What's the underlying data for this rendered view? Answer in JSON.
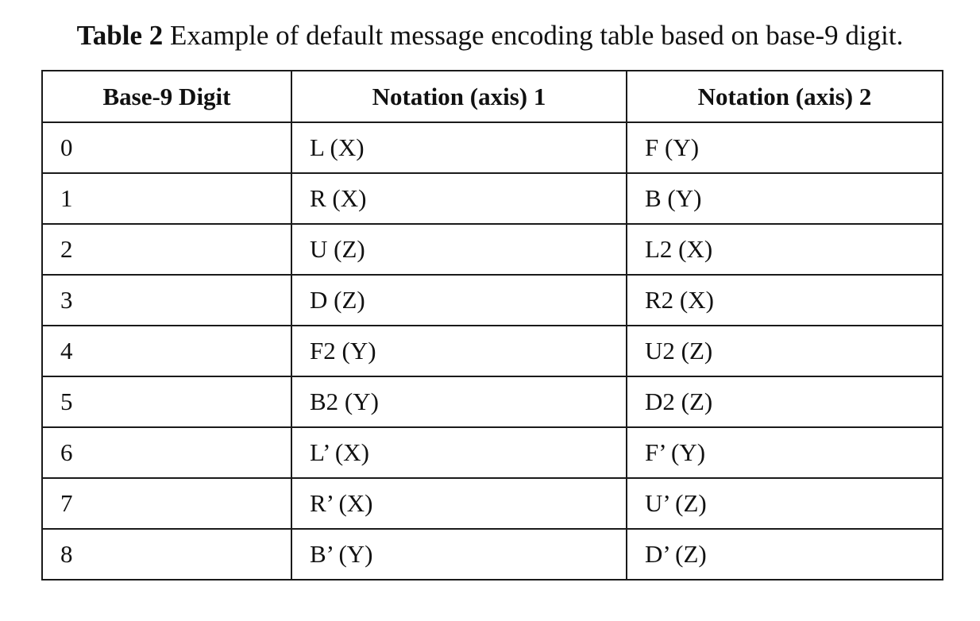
{
  "caption": {
    "label": "Table 2",
    "text": "Example of default message encoding table based on base-9 digit."
  },
  "table": {
    "headers": [
      "Base-9 Digit",
      "Notation (axis) 1",
      "Notation (axis) 2"
    ],
    "rows": [
      [
        "0",
        "L (X)",
        "F (Y)"
      ],
      [
        "1",
        "R (X)",
        "B (Y)"
      ],
      [
        "2",
        "U (Z)",
        "L2 (X)"
      ],
      [
        "3",
        "D (Z)",
        "R2 (X)"
      ],
      [
        "4",
        "F2 (Y)",
        "U2 (Z)"
      ],
      [
        "5",
        "B2 (Y)",
        "D2 (Z)"
      ],
      [
        "6",
        "L’ (X)",
        "F’ (Y)"
      ],
      [
        "7",
        "R’ (X)",
        "U’ (Z)"
      ],
      [
        "8",
        "B’ (Y)",
        "D’ (Z)"
      ]
    ]
  }
}
